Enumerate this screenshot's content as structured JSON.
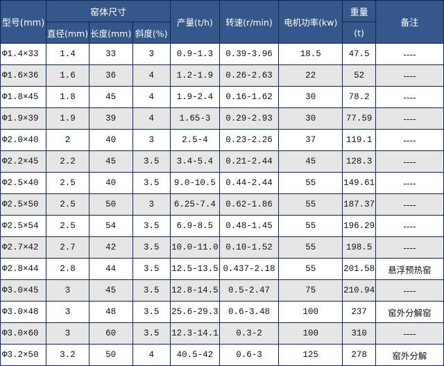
{
  "header": {
    "model": "型号(mm)",
    "kiln_size": "窑体尺寸",
    "diameter": "直径(mm)",
    "length": "长度(mm)",
    "slope": "斜度(%)",
    "capacity": "产量(t/h)",
    "speed": "转速(r/min)",
    "motor_power": "电机功率(kw)",
    "weight": "重量",
    "weight_unit": "(t)",
    "remarks": "备注"
  },
  "colors": {
    "header_bg": "#35578a",
    "border": "#0d2452",
    "alt_row": "#e6e6e6"
  },
  "rows": [
    [
      "Φ1.4×33",
      "1.4",
      "33",
      "3",
      "0.9-1.3",
      "0.39-3.96",
      "18.5",
      "47.5",
      "----"
    ],
    [
      "Φ1.6×36",
      "1.6",
      "36",
      "4",
      "1.2-1.9",
      "0.26-2.63",
      "22",
      "52",
      "----"
    ],
    [
      "Φ1.8×45",
      "1.8",
      "45",
      "4",
      "1.9-2.4",
      "0.16-1.62",
      "30",
      "78.2",
      "----"
    ],
    [
      "Φ1.9×39",
      "1.9",
      "39",
      "4",
      "1.65-3",
      "0.29-2.93",
      "30",
      "77.59",
      "----"
    ],
    [
      "Φ2.0×40",
      "2",
      "40",
      "3",
      "2.5-4",
      "0.23-2.26",
      "37",
      "119.1",
      "----"
    ],
    [
      "Φ2.2×45",
      "2.2",
      "45",
      "3.5",
      "3.4-5.4",
      "0.21-2.44",
      "45",
      "128.3",
      "----"
    ],
    [
      "Φ2.5×40",
      "2.5",
      "40",
      "3.5",
      "9.0-10.5",
      "0.44-2.44",
      "55",
      "149.61",
      "----"
    ],
    [
      "Φ2.5×50",
      "2.5",
      "50",
      "3",
      "6.25-7.4",
      "0.62-1.86",
      "55",
      "187.37",
      "----"
    ],
    [
      "Φ2.5×54",
      "2.5",
      "54",
      "3.5",
      "6.9-8.5",
      "0.48-1.45",
      "55",
      "196.29",
      "----"
    ],
    [
      "Φ2.7×42",
      "2.7",
      "42",
      "3.5",
      "10.0-11.0",
      "0.10-1.52",
      "55",
      "198.5",
      "----"
    ],
    [
      "Φ2.8×44",
      "2.8",
      "44",
      "3.5",
      "12.5-13.5",
      "0.437-2.18",
      "55",
      "201.58",
      "悬浮预热窑"
    ],
    [
      "Φ3.0×45",
      "3",
      "45",
      "3.5",
      "12.8-14.5",
      "0.5-2.47",
      "75",
      "210.94",
      "----"
    ],
    [
      "Φ3.0×48",
      "3",
      "48",
      "3.5",
      "25.6-29.3",
      "0.6-3.48",
      "100",
      "237",
      "窑外分解窑"
    ],
    [
      "Φ3.0×60",
      "3",
      "60",
      "3.5",
      "12.3-14.1",
      "0.3-2",
      "100",
      "310",
      "----"
    ],
    [
      "Φ3.2×50",
      "3.2",
      "50",
      "4",
      "40.5-42",
      "0.6-3",
      "125",
      "278",
      "窑外分解"
    ]
  ]
}
